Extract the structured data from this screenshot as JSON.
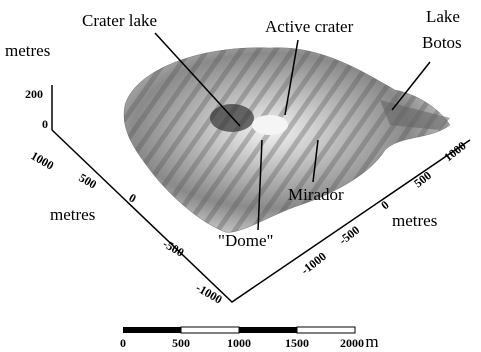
{
  "labels": {
    "crater_lake": "Crater lake",
    "active_crater": "Active crater",
    "lake": "Lake",
    "botos": "Botos",
    "mirador": "Mirador",
    "dome": "\"Dome\""
  },
  "axes": {
    "vertical": {
      "label": "metres",
      "ticks": [
        "200",
        "0"
      ]
    },
    "left": {
      "label": "metres",
      "ticks": [
        "1000",
        "500",
        "0",
        "-500",
        "-1000"
      ]
    },
    "right": {
      "label": "metres",
      "ticks": [
        "-1000",
        "-500",
        "0",
        "500",
        "1000"
      ]
    }
  },
  "scale_bar": {
    "ticks": [
      "0",
      "500",
      "1000",
      "1500",
      "2000"
    ],
    "unit": "m"
  }
}
